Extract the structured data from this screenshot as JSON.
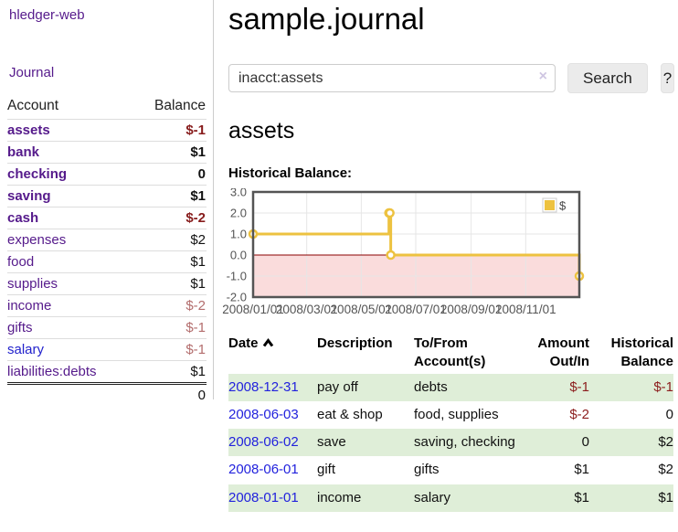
{
  "app": {
    "title": "hledger-web",
    "nav": {
      "journal": "Journal"
    }
  },
  "sidebar": {
    "columns": {
      "account": "Account",
      "balance": "Balance"
    },
    "accounts": [
      {
        "name": "assets",
        "balance": "$-1",
        "level": 1,
        "bold": true,
        "link": "visited",
        "balance_style": "neg-strong"
      },
      {
        "name": "bank",
        "balance": "$1",
        "level": 2,
        "bold": true,
        "link": "visited",
        "balance_style": "plain-strong"
      },
      {
        "name": "checking",
        "balance": "0",
        "level": 3,
        "bold": true,
        "link": "visited",
        "balance_style": "plain-strong"
      },
      {
        "name": "saving",
        "balance": "$1",
        "level": 3,
        "bold": true,
        "link": "visited",
        "balance_style": "plain-strong"
      },
      {
        "name": "cash",
        "balance": "$-2",
        "level": 2,
        "bold": true,
        "link": "visited",
        "balance_style": "neg-strong"
      },
      {
        "name": "expenses",
        "balance": "$2",
        "level": 1,
        "bold": false,
        "link": "visited",
        "balance_style": "plain"
      },
      {
        "name": "food",
        "balance": "$1",
        "level": 2,
        "bold": false,
        "link": "visited",
        "balance_style": "plain"
      },
      {
        "name": "supplies",
        "balance": "$1",
        "level": 2,
        "bold": false,
        "link": "visited",
        "balance_style": "plain"
      },
      {
        "name": "income",
        "balance": "$-2",
        "level": 1,
        "bold": false,
        "link": "visited",
        "balance_style": "neg-soft"
      },
      {
        "name": "gifts",
        "balance": "$-1",
        "level": 2,
        "bold": false,
        "link": "visited",
        "balance_style": "neg-soft"
      },
      {
        "name": "salary",
        "balance": "$-1",
        "level": 2,
        "bold": false,
        "link": "unvisited",
        "balance_style": "neg-soft"
      },
      {
        "name": "liabilities:debts",
        "balance": "$1",
        "level": 1,
        "bold": false,
        "link": "visited",
        "balance_style": "plain"
      }
    ],
    "total": "0"
  },
  "main": {
    "title": "sample.journal",
    "search": {
      "value": "inacct:assets",
      "clear_icon": "×",
      "button_label": "Search",
      "help_label": "?"
    },
    "account_heading": "assets",
    "chart_label": "Historical Balance:"
  },
  "chart_data": {
    "type": "line",
    "step": true,
    "series": [
      {
        "name": "$",
        "color": "#edc240",
        "points": [
          [
            "2008/01/01",
            1
          ],
          [
            "2008/06/01",
            2
          ],
          [
            "2008/06/02",
            2
          ],
          [
            "2008/06/03",
            0
          ],
          [
            "2008/12/31",
            -1
          ]
        ]
      }
    ],
    "x_range": [
      "2008/01/01",
      "2008/12/31"
    ],
    "x_ticks": [
      "2008/01/01",
      "2008/03/01",
      "2008/05/01",
      "2008/07/01",
      "2008/09/01",
      "2008/11/01"
    ],
    "y_range": [
      -2,
      3
    ],
    "y_ticks": [
      "3.0",
      "2.0",
      "1.0",
      "0.0",
      "-1.0",
      "-2.0"
    ],
    "grid": true,
    "legend_position": "top-right",
    "negative_region_color": "#fadcdc",
    "zero_line_color": "#8b0000",
    "border_color": "#545454",
    "grid_color": "#e6e6e6",
    "tick_label_color": "#545454"
  },
  "register": {
    "columns": [
      {
        "l1": "Date",
        "l2": "",
        "align": "left",
        "sorted_asc": true
      },
      {
        "l1": "Description",
        "l2": "",
        "align": "left"
      },
      {
        "l1": "To/From",
        "l2": "Account(s)",
        "align": "left"
      },
      {
        "l1": "Amount",
        "l2": "Out/In",
        "align": "right"
      },
      {
        "l1": "Historical",
        "l2": "Balance",
        "align": "right"
      }
    ],
    "rows": [
      {
        "date": "2008-12-31",
        "description": "pay off",
        "accounts": "debts",
        "amount": "$-1",
        "amount_neg": true,
        "balance": "$-1",
        "balance_neg": true
      },
      {
        "date": "2008-06-03",
        "description": "eat & shop",
        "accounts": "food, supplies",
        "amount": "$-2",
        "amount_neg": true,
        "balance": "0",
        "balance_neg": false
      },
      {
        "date": "2008-06-02",
        "description": "save",
        "accounts": "saving, checking",
        "amount": "0",
        "amount_neg": false,
        "balance": "$2",
        "balance_neg": false
      },
      {
        "date": "2008-06-01",
        "description": "gift",
        "accounts": "gifts",
        "amount": "$1",
        "amount_neg": false,
        "balance": "$2",
        "balance_neg": false
      },
      {
        "date": "2008-01-01",
        "description": "income",
        "accounts": "salary",
        "amount": "$1",
        "amount_neg": false,
        "balance": "$1",
        "balance_neg": false
      }
    ]
  }
}
